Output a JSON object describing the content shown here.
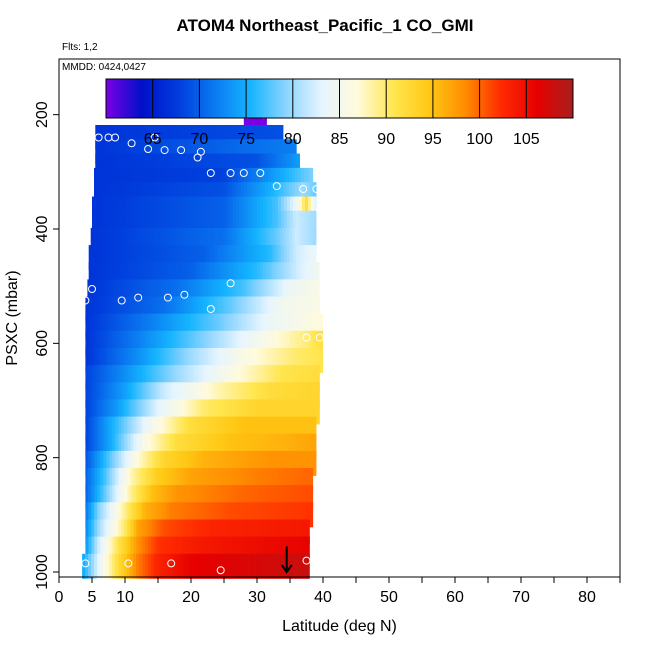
{
  "chart_data": {
    "type": "heatmap",
    "title": "ATOM4 Northeast_Pacific_1 CO_GMI",
    "flights_label": "Flts: 1,2",
    "mmdd_label": "MMDD: 0424,0427",
    "xlabel": "Latitude (deg N)",
    "ylabel": "PSXC (mbar)",
    "xlim": [
      0,
      85
    ],
    "ylim": [
      1000,
      100
    ],
    "x_ticks": [
      0,
      5,
      10,
      20,
      30,
      40,
      50,
      60,
      70,
      80
    ],
    "y_ticks": [
      200,
      400,
      600,
      800,
      1000
    ],
    "colorbar": {
      "range": [
        60,
        110
      ],
      "tick_values": [
        65,
        70,
        75,
        80,
        85,
        90,
        95,
        100,
        105
      ],
      "colors": [
        "#7b00e6",
        "#0010c8",
        "#003cdc",
        "#0a78f0",
        "#14b4ff",
        "#8ad4ff",
        "#e6f5ff",
        "#fffadc",
        "#ffe650",
        "#ffc814",
        "#ff8c00",
        "#ff2a00",
        "#e60000",
        "#a8201c"
      ]
    },
    "levels": [
      {
        "p": 200,
        "x0": 28.0,
        "x1": 31.5,
        "lat": [
          28,
          31.5
        ],
        "val": [
          60,
          60
        ]
      },
      {
        "p": 240,
        "x0": 5.5,
        "x1": 34.0,
        "lat": [
          5.5,
          34
        ],
        "val": [
          67,
          69
        ]
      },
      {
        "p": 265,
        "x0": 5.5,
        "x1": 36.0,
        "lat": [
          5.5,
          36
        ],
        "val": [
          67,
          72
        ]
      },
      {
        "p": 290,
        "x0": 5.5,
        "x1": 36.5,
        "lat": [
          5.5,
          30,
          36.5
        ],
        "val": [
          67,
          69,
          74
        ]
      },
      {
        "p": 315,
        "x0": 5.3,
        "x1": 38.5,
        "lat": [
          5.3,
          25,
          34,
          38.5
        ],
        "val": [
          67,
          68,
          75,
          79
        ]
      },
      {
        "p": 340,
        "x0": 5.3,
        "x1": 39.0,
        "lat": [
          5.3,
          25,
          33,
          37,
          39
        ],
        "val": [
          67,
          69,
          76,
          80,
          78
        ]
      },
      {
        "p": 365,
        "x0": 5.0,
        "x1": 39.0,
        "lat": [
          5,
          25,
          33,
          36,
          37.5,
          39
        ],
        "val": [
          67,
          70,
          77,
          84,
          92,
          82
        ]
      },
      {
        "p": 390,
        "x0": 5.0,
        "x1": 39.0,
        "lat": [
          5,
          25,
          33,
          36,
          39
        ],
        "val": [
          67,
          70,
          77,
          82,
          80
        ]
      },
      {
        "p": 420,
        "x0": 4.8,
        "x1": 39.0,
        "lat": [
          4.8,
          25,
          33,
          36,
          39
        ],
        "val": [
          67,
          71,
          78,
          82,
          80
        ]
      },
      {
        "p": 450,
        "x0": 4.5,
        "x1": 39.0,
        "lat": [
          4.5,
          22,
          32,
          36,
          39
        ],
        "val": [
          67,
          70,
          76,
          82,
          84
        ]
      },
      {
        "p": 480,
        "x0": 4.5,
        "x1": 39.5,
        "lat": [
          4.5,
          20,
          30,
          36,
          39.5
        ],
        "val": [
          67,
          70,
          76,
          82,
          85
        ]
      },
      {
        "p": 510,
        "x0": 4.3,
        "x1": 39.5,
        "lat": [
          4.3,
          18,
          28,
          35,
          39.5
        ],
        "val": [
          67,
          71,
          77,
          84,
          86
        ]
      },
      {
        "p": 540,
        "x0": 4.0,
        "x1": 39.5,
        "lat": [
          4,
          16,
          26,
          34,
          39.5
        ],
        "val": [
          67,
          71,
          78,
          85,
          86
        ]
      },
      {
        "p": 570,
        "x0": 4.0,
        "x1": 40.0,
        "lat": [
          4,
          14,
          24,
          32,
          40
        ],
        "val": [
          67,
          72,
          78,
          84,
          87
        ]
      },
      {
        "p": 600,
        "x0": 4.0,
        "x1": 40.0,
        "lat": [
          4,
          12,
          22,
          30,
          38,
          40
        ],
        "val": [
          67,
          72,
          79,
          85,
          90,
          92
        ]
      },
      {
        "p": 630,
        "x0": 4.0,
        "x1": 40.0,
        "lat": [
          4,
          12,
          20,
          28,
          36,
          40
        ],
        "val": [
          67,
          73,
          80,
          86,
          90,
          91
        ]
      },
      {
        "p": 660,
        "x0": 4.0,
        "x1": 39.5,
        "lat": [
          4,
          10,
          18,
          26,
          34,
          39.5
        ],
        "val": [
          68,
          73,
          80,
          86,
          91,
          92
        ]
      },
      {
        "p": 690,
        "x0": 4.0,
        "x1": 39.5,
        "lat": [
          4,
          10,
          16,
          24,
          32,
          39.5
        ],
        "val": [
          68,
          74,
          82,
          88,
          92,
          93
        ]
      },
      {
        "p": 720,
        "x0": 4.0,
        "x1": 39.5,
        "lat": [
          4,
          9,
          15,
          22,
          30,
          39.5
        ],
        "val": [
          68,
          74,
          83,
          90,
          93,
          93
        ]
      },
      {
        "p": 750,
        "x0": 4.0,
        "x1": 39.0,
        "lat": [
          4,
          8,
          14,
          20,
          28,
          39
        ],
        "val": [
          68,
          75,
          85,
          92,
          95,
          95
        ]
      },
      {
        "p": 780,
        "x0": 4.0,
        "x1": 39.0,
        "lat": [
          4,
          8,
          13,
          18,
          26,
          34,
          39
        ],
        "val": [
          68,
          75,
          86,
          92,
          95,
          96,
          97
        ]
      },
      {
        "p": 810,
        "x0": 4.0,
        "x1": 39.0,
        "lat": [
          4,
          7,
          12,
          16,
          22,
          32,
          39
        ],
        "val": [
          69,
          76,
          87,
          93,
          96,
          98,
          98
        ]
      },
      {
        "p": 840,
        "x0": 4.0,
        "x1": 38.5,
        "lat": [
          4,
          7,
          11,
          15,
          20,
          30,
          38.5
        ],
        "val": [
          70,
          77,
          88,
          94,
          97,
          99,
          100
        ]
      },
      {
        "p": 870,
        "x0": 4.0,
        "x1": 38.5,
        "lat": [
          4,
          7,
          11,
          14,
          18,
          28,
          38.5
        ],
        "val": [
          70,
          78,
          89,
          95,
          98,
          100,
          101
        ]
      },
      {
        "p": 900,
        "x0": 4.0,
        "x1": 38.5,
        "lat": [
          4,
          6,
          10,
          13,
          17,
          26,
          38.5
        ],
        "val": [
          71,
          79,
          89,
          96,
          99,
          101,
          102
        ]
      },
      {
        "p": 930,
        "x0": 4.0,
        "x1": 38.0,
        "lat": [
          4,
          6,
          10,
          12,
          16,
          24,
          38
        ],
        "val": [
          72,
          80,
          90,
          97,
          101,
          103,
          104
        ]
      },
      {
        "p": 960,
        "x0": 4.0,
        "x1": 38.0,
        "lat": [
          4,
          6,
          9,
          12,
          15,
          22,
          38
        ],
        "val": [
          73,
          82,
          91,
          98,
          102,
          104,
          106
        ]
      },
      {
        "p": 990,
        "x0": 3.5,
        "x1": 38.0,
        "lat": [
          3.5,
          6,
          9,
          12,
          15,
          20,
          38
        ],
        "val": [
          74,
          83,
          92,
          99,
          103,
          106,
          108
        ]
      }
    ],
    "observations": [
      [
        28.5,
        200
      ],
      [
        31,
        200
      ],
      [
        6,
        240
      ],
      [
        7.5,
        240
      ],
      [
        8.5,
        240
      ],
      [
        11,
        250
      ],
      [
        13.5,
        260
      ],
      [
        14.5,
        240
      ],
      [
        16,
        262
      ],
      [
        18.5,
        262
      ],
      [
        21,
        275
      ],
      [
        21.5,
        265
      ],
      [
        23,
        302
      ],
      [
        26,
        302
      ],
      [
        28,
        302
      ],
      [
        30.5,
        302
      ],
      [
        33,
        325
      ],
      [
        37,
        330
      ],
      [
        39,
        330
      ],
      [
        5,
        505
      ],
      [
        4,
        525
      ],
      [
        9.5,
        525
      ],
      [
        12,
        520
      ],
      [
        16.5,
        520
      ],
      [
        19,
        515
      ],
      [
        23,
        540
      ],
      [
        26,
        495
      ],
      [
        37.5,
        590
      ],
      [
        39.5,
        590
      ],
      [
        4,
        985
      ],
      [
        10.5,
        985
      ],
      [
        17,
        985
      ],
      [
        24.5,
        997
      ],
      [
        37.5,
        980
      ]
    ],
    "arrow": {
      "lat": 34.5,
      "p_from": 955,
      "p_to": 1000
    }
  }
}
